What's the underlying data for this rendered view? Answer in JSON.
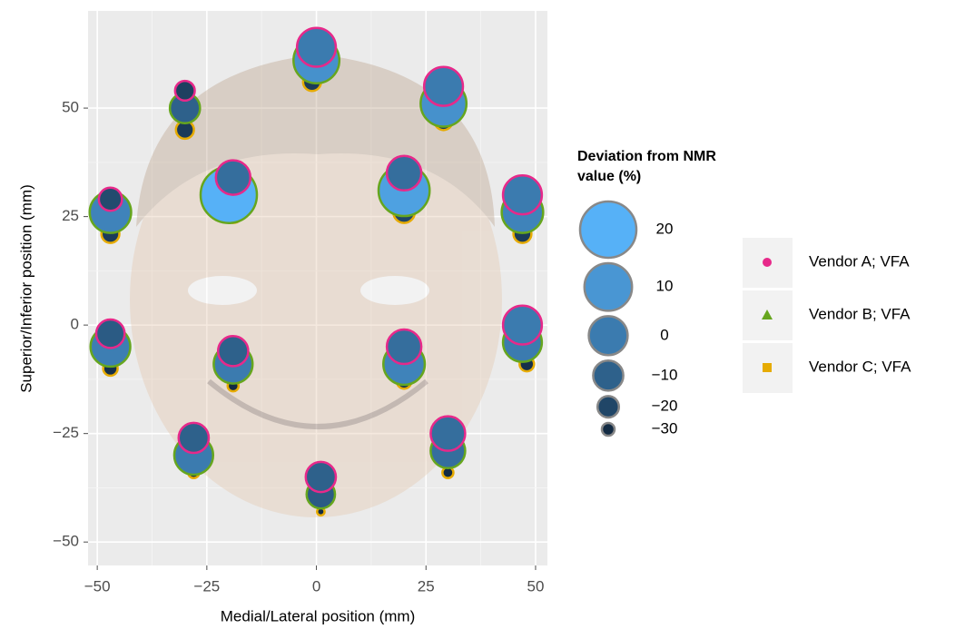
{
  "chart_data": {
    "type": "scatter",
    "x_label": "Medial/Lateral position (mm)",
    "y_label": "Superior/Inferior position (mm)",
    "xlim": [
      -52.1,
      52.7
    ],
    "ylim": [
      -55.4,
      72.4
    ],
    "xticks": [
      {
        "value": -50,
        "label": "−50"
      },
      {
        "value": -25,
        "label": "−25"
      },
      0,
      25,
      50
    ],
    "yticks": [
      {
        "value": -50,
        "label": "−50"
      },
      {
        "value": -25,
        "label": "−25"
      },
      0,
      25,
      50
    ],
    "grid": true,
    "size_legend_title": "Deviation from NMR value (%)",
    "size_ticks": [
      20,
      10,
      0,
      {
        "value": -10,
        "label": "−10"
      },
      {
        "value": -20,
        "label": "−20"
      },
      {
        "value": -30,
        "label": "−30"
      }
    ],
    "series": [
      {
        "name": "Vendor A; VFA",
        "color": "#e7298a",
        "marker": "circle",
        "x": [
          -47,
          -30,
          0,
          29,
          -19,
          20,
          47,
          -47,
          47,
          -19,
          20,
          -28,
          30,
          1
        ],
        "y": [
          29,
          54,
          64,
          55,
          34,
          35,
          30,
          -2,
          0,
          -6,
          -5,
          -26,
          -25,
          -35
        ],
        "values": [
          -18,
          -22,
          0,
          0,
          -5,
          -5,
          0,
          -12,
          0,
          -10,
          -5,
          -10,
          -5,
          -10
        ]
      },
      {
        "name": "Vendor B; VFA",
        "color": "#66a61e",
        "marker": "triangle",
        "x": [
          -47,
          -30,
          0,
          29,
          -20,
          20,
          47,
          -47,
          47,
          -19,
          20,
          -28,
          30,
          1
        ],
        "y": [
          26,
          50,
          61,
          51,
          30,
          31,
          26,
          -5,
          -4,
          -9,
          -9,
          -30,
          -29,
          -39
        ],
        "values": [
          3,
          -10,
          8,
          8,
          20,
          14,
          3,
          1,
          0,
          0,
          3,
          0,
          -5,
          -12
        ]
      },
      {
        "name": "Vendor C; VFA",
        "color": "#e6ab02",
        "marker": "square",
        "x": [
          -47,
          -30,
          -1,
          29,
          -19,
          20,
          47,
          -47,
          48,
          -19,
          20,
          -28,
          30,
          1
        ],
        "y": [
          21,
          45,
          56,
          47,
          26,
          26,
          21,
          -10,
          -9,
          -14,
          -13,
          -34,
          -34,
          -43
        ],
        "values": [
          -24,
          -24,
          -24,
          -24,
          -20,
          -20,
          -24,
          -28,
          -28,
          -32,
          -28,
          -32,
          -32,
          -36
        ]
      }
    ]
  }
}
